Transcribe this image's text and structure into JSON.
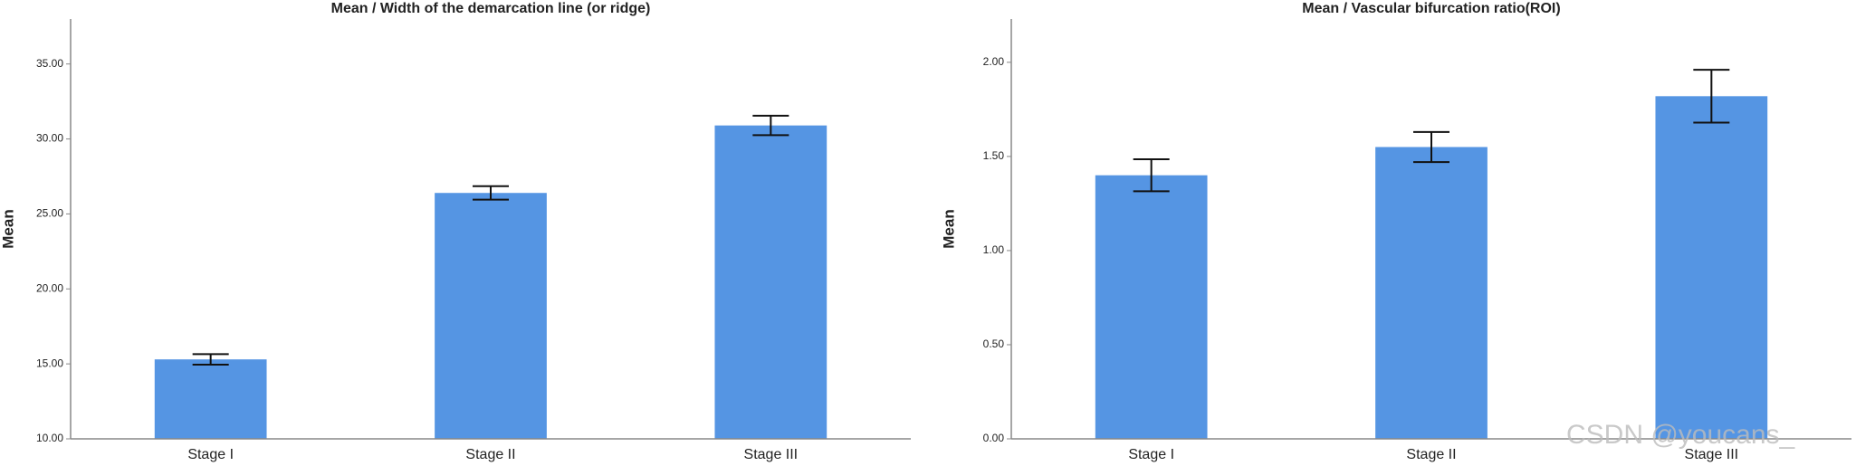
{
  "chart_data": [
    {
      "type": "bar",
      "title": "Mean / Width of the demarcation line (or ridge)",
      "y_label": "Mean",
      "categories": [
        "Stage I",
        "Stage II",
        "Stage III"
      ],
      "values": [
        15.3,
        26.4,
        30.9
      ],
      "errors": [
        0.35,
        0.45,
        0.65
      ],
      "color": "#5595e3",
      "ylim": [
        10,
        38
      ],
      "yticks": [
        {
          "value": 10,
          "label": "10.00"
        },
        {
          "value": 15,
          "label": "15.00"
        },
        {
          "value": 20,
          "label": "20.00"
        },
        {
          "value": 25,
          "label": "25.00"
        },
        {
          "value": 30,
          "label": "30.00"
        },
        {
          "value": 35,
          "label": "35.00"
        }
      ]
    },
    {
      "type": "bar",
      "title": "Mean / Vascular bifurcation ratio(ROI)",
      "y_label": "Mean",
      "categories": [
        "Stage I",
        "Stage II",
        "Stage III"
      ],
      "values": [
        1.4,
        1.55,
        1.82
      ],
      "errors": [
        0.085,
        0.08,
        0.14
      ],
      "color": "#5595e3",
      "ylim": [
        0,
        2.23
      ],
      "yticks": [
        {
          "value": 0,
          "label": "0.00"
        },
        {
          "value": 0.5,
          "label": "0.50"
        },
        {
          "value": 1,
          "label": "1.00"
        },
        {
          "value": 1.5,
          "label": "1.50"
        },
        {
          "value": 2,
          "label": "2.00"
        }
      ]
    }
  ],
  "watermark": "CSDN @youcans_"
}
